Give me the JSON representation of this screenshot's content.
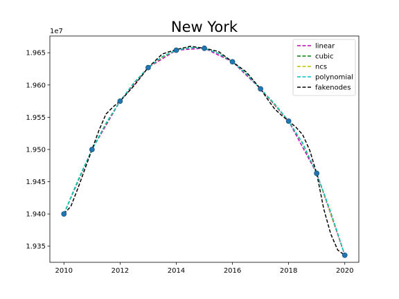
{
  "chart_data": {
    "type": "line",
    "title": "New York",
    "xlabel": "",
    "ylabel": "",
    "y_offset_label": "1e7",
    "xlim": [
      2009.5,
      2020.5
    ],
    "ylim": [
      19325000,
      19676000
    ],
    "x_ticks": [
      2010,
      2012,
      2014,
      2016,
      2018,
      2020
    ],
    "y_ticks": [
      19350000,
      19400000,
      19450000,
      19500000,
      19550000,
      19600000,
      19650000
    ],
    "y_tick_labels": [
      "1.935",
      "1.940",
      "1.945",
      "1.950",
      "1.955",
      "1.960",
      "1.965"
    ],
    "grid": false,
    "legend_position": "top-right",
    "observed_points": {
      "color": "#1f77b4",
      "x": [
        2010,
        2011,
        2012,
        2013,
        2014,
        2015,
        2016,
        2017,
        2018,
        2019,
        2020
      ],
      "y": [
        19400000,
        19500000,
        19575000,
        19627000,
        19654000,
        19657000,
        19636000,
        19594000,
        19544000,
        19463000,
        19336000
      ]
    },
    "series": [
      {
        "name": "linear",
        "color": "#bf00bf",
        "x": [
          2010,
          2011,
          2012,
          2013,
          2014,
          2015,
          2016,
          2017,
          2018,
          2019,
          2020
        ],
        "y": [
          19400000,
          19500000,
          19575000,
          19627000,
          19654000,
          19657000,
          19636000,
          19594000,
          19544000,
          19463000,
          19336000
        ]
      },
      {
        "name": "cubic",
        "color": "#008000",
        "x": [
          2010,
          2010.5,
          2011,
          2011.5,
          2012,
          2012.5,
          2013,
          2013.5,
          2014,
          2014.5,
          2015,
          2015.5,
          2016,
          2016.5,
          2017,
          2017.5,
          2018,
          2018.5,
          2019,
          2019.5,
          2020
        ],
        "y": [
          19400000,
          19452000,
          19500000,
          19540000,
          19575000,
          19603000,
          19627000,
          19643000,
          19654000,
          19658000,
          19657000,
          19649000,
          19636000,
          19617000,
          19594000,
          19570000,
          19544000,
          19509000,
          19463000,
          19402000,
          19336000
        ]
      },
      {
        "name": "ncs",
        "color": "#bfbf00",
        "x": [
          2010,
          2010.5,
          2011,
          2011.5,
          2012,
          2012.5,
          2013,
          2013.5,
          2014,
          2014.5,
          2015,
          2015.5,
          2016,
          2016.5,
          2017,
          2017.5,
          2018,
          2018.5,
          2019,
          2019.5,
          2020
        ],
        "y": [
          19400000,
          19451000,
          19500000,
          19540000,
          19575000,
          19603000,
          19627000,
          19643000,
          19654000,
          19658000,
          19657000,
          19649000,
          19636000,
          19617000,
          19594000,
          19570000,
          19544000,
          19509000,
          19463000,
          19400000,
          19336000
        ]
      },
      {
        "name": "polynomial",
        "color": "#00bfbf",
        "x": [
          2010,
          2010.5,
          2011,
          2011.5,
          2012,
          2012.5,
          2013,
          2013.5,
          2014,
          2014.5,
          2015,
          2015.5,
          2016,
          2016.5,
          2017,
          2017.5,
          2018,
          2018.5,
          2019,
          2019.5,
          2020
        ],
        "y": [
          19400000,
          19452000,
          19500000,
          19541000,
          19575000,
          19604000,
          19627000,
          19644000,
          19654000,
          19658000,
          19657000,
          19649000,
          19636000,
          19617000,
          19594000,
          19571000,
          19544000,
          19510000,
          19463000,
          19403000,
          19336000
        ]
      },
      {
        "name": "fakenodes",
        "color": "#000000",
        "x": [
          2010,
          2010.25,
          2010.5,
          2010.75,
          2011,
          2011.25,
          2011.5,
          2011.75,
          2012,
          2012.5,
          2013,
          2013.5,
          2014,
          2014.5,
          2015,
          2015.5,
          2016,
          2016.5,
          2017,
          2017.25,
          2017.5,
          2017.75,
          2018,
          2018.25,
          2018.5,
          2018.75,
          2019,
          2019.25,
          2019.5,
          2019.75,
          2020
        ],
        "y": [
          19400000,
          19412000,
          19440000,
          19470000,
          19500000,
          19530000,
          19555000,
          19566000,
          19575000,
          19599000,
          19627000,
          19648000,
          19655000,
          19660000,
          19657000,
          19652000,
          19636000,
          19620000,
          19594000,
          19578000,
          19563000,
          19553000,
          19544000,
          19535000,
          19523000,
          19499000,
          19463000,
          19408000,
          19369000,
          19344000,
          19336000
        ]
      }
    ]
  }
}
